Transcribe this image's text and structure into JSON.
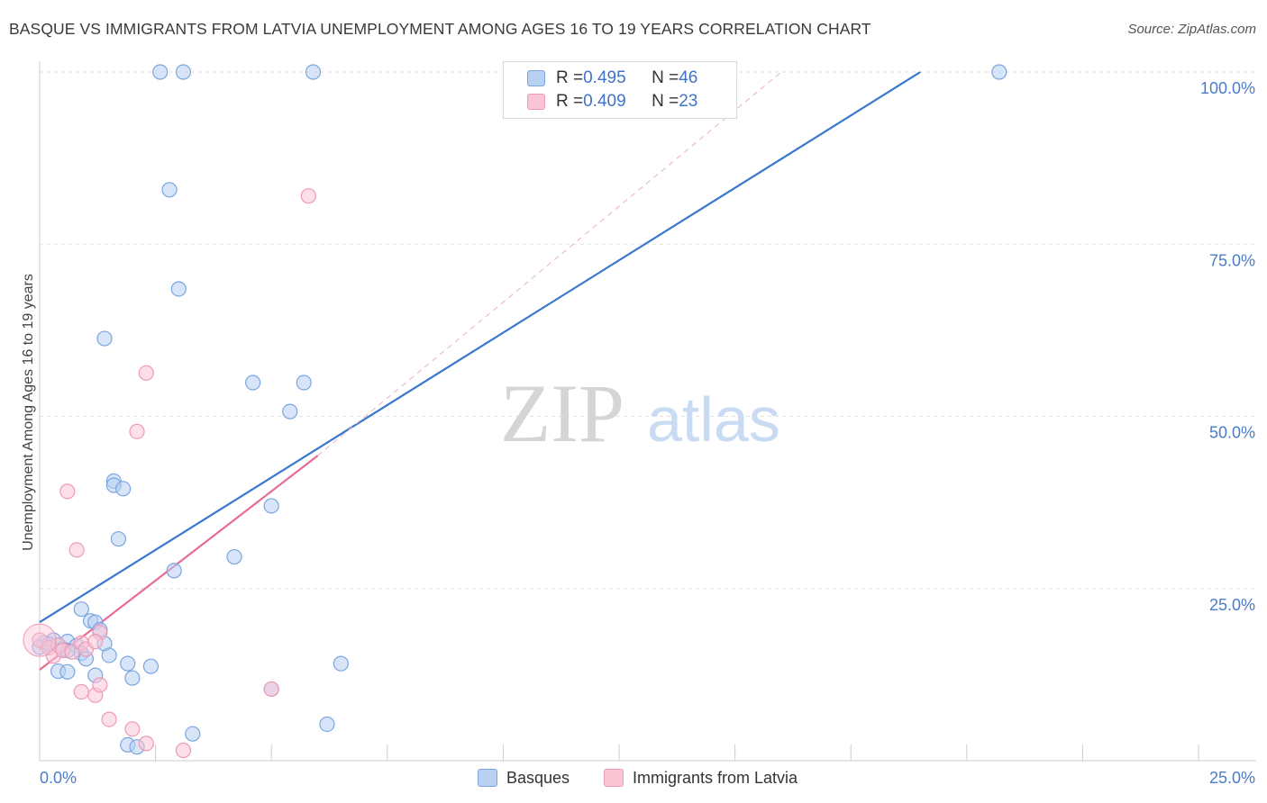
{
  "header": {
    "title": "BASQUE VS IMMIGRANTS FROM LATVIA UNEMPLOYMENT AMONG AGES 16 TO 19 YEARS CORRELATION CHART",
    "source": "Source: ZipAtlas.com"
  },
  "watermark": {
    "zip": "ZIP",
    "atlas": "atlas"
  },
  "legend": {
    "basques": {
      "r_label": "R = ",
      "r_value": "0.495",
      "n_label": "N = ",
      "n_value": "46"
    },
    "latvia": {
      "r_label": "R = ",
      "r_value": "0.409",
      "n_label": "N = ",
      "n_value": "23"
    }
  },
  "colors": {
    "basques_fill": "#b8d0f2",
    "basques_stroke": "#7aa6e0",
    "basques_line": "#3a78cf",
    "latvia_fill": "#f9c5d5",
    "latvia_stroke": "#ee9ab4",
    "latvia_line": "#e86a96",
    "tick_text": "#4a7cc7",
    "grid": "#e2e2e2"
  },
  "chart_data": {
    "type": "scatter",
    "title": "BASQUE VS IMMIGRANTS FROM LATVIA UNEMPLOYMENT AMONG AGES 16 TO 19 YEARS CORRELATION CHART",
    "xlabel": "",
    "ylabel": "Unemployment Among Ages 16 to 19 years",
    "xlim": [
      0,
      25
    ],
    "ylim": [
      0,
      100
    ],
    "x_ticks": [
      "0.0%",
      "25.0%"
    ],
    "y_ticks": [
      "25.0%",
      "50.0%",
      "75.0%",
      "100.0%"
    ],
    "y_tick_values": [
      25,
      50,
      75,
      100
    ],
    "grid": true,
    "legend_position": "top-center",
    "series": [
      {
        "name": "Basques",
        "points": [
          [
            2.6,
            100
          ],
          [
            3.1,
            100
          ],
          [
            5.9,
            100
          ],
          [
            20.7,
            100
          ],
          [
            2.8,
            82.9
          ],
          [
            3.0,
            68.5
          ],
          [
            1.4,
            61.3
          ],
          [
            4.6,
            54.9
          ],
          [
            5.7,
            54.9
          ],
          [
            5.4,
            50.7
          ],
          [
            1.6,
            40.6
          ],
          [
            1.6,
            40.0
          ],
          [
            1.8,
            39.5
          ],
          [
            5.0,
            37.0
          ],
          [
            1.7,
            32.2
          ],
          [
            4.2,
            29.6
          ],
          [
            2.9,
            27.6
          ],
          [
            0.9,
            22.0
          ],
          [
            1.1,
            20.3
          ],
          [
            1.2,
            20.1
          ],
          [
            1.3,
            19.0
          ],
          [
            0.1,
            17.1
          ],
          [
            0.3,
            17.5
          ],
          [
            0.6,
            17.3
          ],
          [
            0.8,
            16.7
          ],
          [
            0.4,
            16.8
          ],
          [
            0.6,
            16.0
          ],
          [
            0.9,
            15.6
          ],
          [
            1.4,
            17.0
          ],
          [
            1.5,
            15.3
          ],
          [
            1.0,
            14.8
          ],
          [
            0.4,
            13.0
          ],
          [
            0.6,
            12.9
          ],
          [
            1.2,
            12.4
          ],
          [
            1.9,
            14.1
          ],
          [
            2.4,
            13.7
          ],
          [
            6.5,
            14.1
          ],
          [
            2.0,
            12.0
          ],
          [
            5.0,
            10.4
          ],
          [
            6.2,
            5.3
          ],
          [
            3.3,
            3.9
          ],
          [
            1.9,
            2.3
          ],
          [
            2.1,
            2.0
          ],
          [
            0.0,
            16.5
          ],
          [
            0.2,
            16.9
          ],
          [
            0.5,
            16.2
          ]
        ]
      },
      {
        "name": "Immigrants from Latvia",
        "points": [
          [
            5.8,
            82.0
          ],
          [
            2.3,
            56.3
          ],
          [
            2.1,
            47.8
          ],
          [
            0.6,
            39.1
          ],
          [
            0.8,
            30.6
          ],
          [
            0.0,
            17.5
          ],
          [
            0.2,
            16.4
          ],
          [
            0.3,
            15.2
          ],
          [
            0.4,
            16.8
          ],
          [
            0.5,
            16.0
          ],
          [
            0.7,
            15.8
          ],
          [
            0.9,
            17.1
          ],
          [
            1.3,
            18.6
          ],
          [
            1.0,
            16.2
          ],
          [
            1.2,
            17.3
          ],
          [
            0.9,
            10.0
          ],
          [
            1.2,
            9.5
          ],
          [
            1.3,
            11.0
          ],
          [
            1.5,
            6.0
          ],
          [
            2.0,
            4.6
          ],
          [
            2.3,
            2.5
          ],
          [
            3.1,
            1.5
          ],
          [
            5.0,
            10.4
          ]
        ]
      }
    ],
    "trend_lines": [
      {
        "series": "Basques",
        "x": [
          0,
          19.0
        ],
        "y": [
          20.1,
          100.0
        ],
        "style": "solid"
      },
      {
        "series": "Immigrants from Latvia",
        "x": [
          0,
          6.0
        ],
        "y": [
          13.2,
          44.3
        ],
        "style": "solid"
      },
      {
        "series": "Immigrants from Latvia",
        "x": [
          6.0,
          16.0
        ],
        "y": [
          44.3,
          100.0
        ],
        "style": "dashed"
      }
    ]
  },
  "bottom_legend": {
    "basques_label": "Basques",
    "latvia_label": "Immigrants from Latvia"
  }
}
